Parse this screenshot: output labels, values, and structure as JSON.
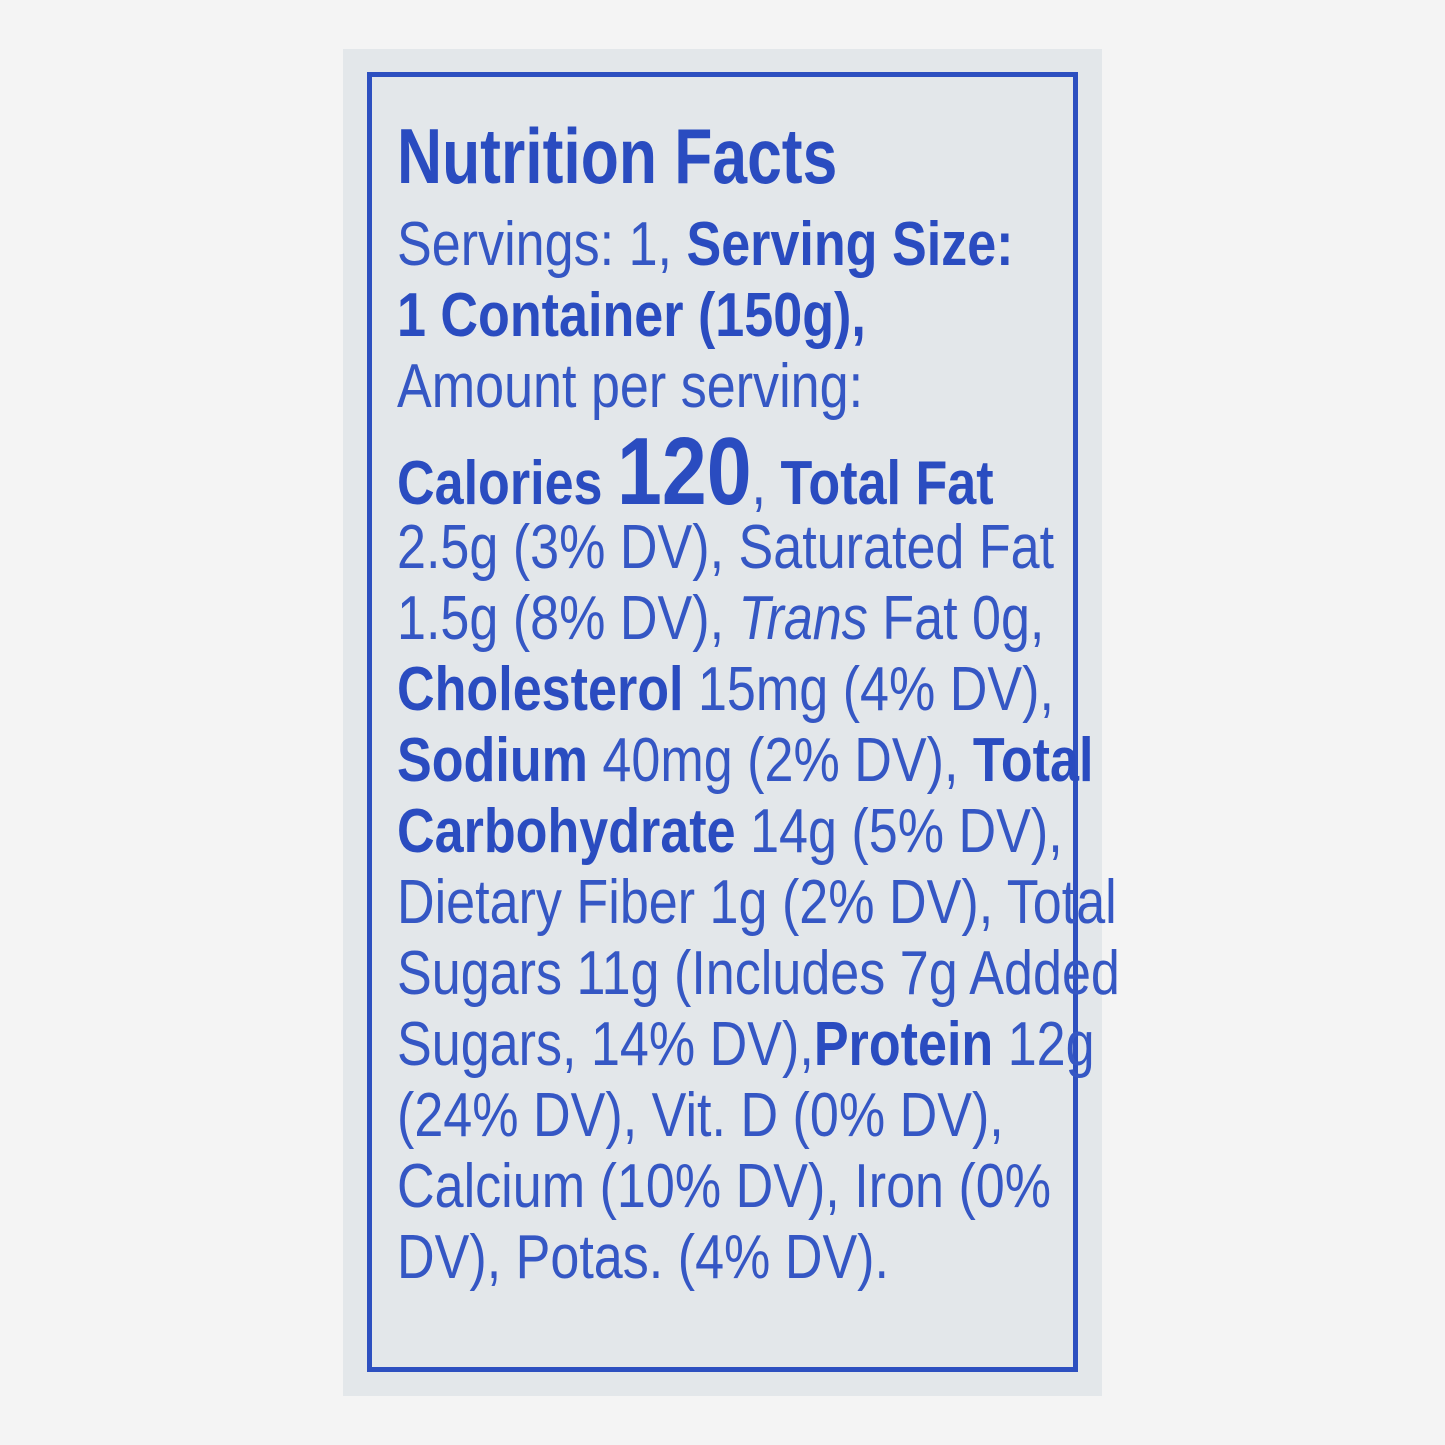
{
  "label": {
    "title": "Nutrition Facts",
    "lines": [
      [
        {
          "t": "Servings: 1, ",
          "b": false
        },
        {
          "t": "Serving Size:",
          "b": true
        }
      ],
      [
        {
          "t": "1 Container (150g),",
          "b": true
        }
      ],
      [
        {
          "t": "Amount per serving:",
          "b": false
        }
      ],
      [
        {
          "t": "2.5g (3% DV), Saturated Fat",
          "b": false
        }
      ],
      [
        {
          "t": "1.5g (8% DV), ",
          "b": false
        },
        {
          "t": "Trans",
          "i": true
        },
        {
          "t": " Fat 0g,",
          "b": false
        }
      ],
      [
        {
          "t": "Cholesterol",
          "b": true
        },
        {
          "t": " 15mg (4% DV),",
          "b": false
        }
      ],
      [
        {
          "t": "Sodium",
          "b": true
        },
        {
          "t": " 40mg (2% DV), ",
          "b": false
        },
        {
          "t": "Total",
          "b": true
        }
      ],
      [
        {
          "t": "Carbohydrate",
          "b": true
        },
        {
          "t": " 14g (5% DV),",
          "b": false
        }
      ],
      [
        {
          "t": "Dietary Fiber 1g (2% DV), Total",
          "b": false
        }
      ],
      [
        {
          "t": "Sugars 11g (Includes 7g Added",
          "b": false
        }
      ],
      [
        {
          "t": "Sugars, 14% DV),",
          "b": false
        },
        {
          "t": "Protein",
          "b": true
        },
        {
          "t": " 12g",
          "b": false
        }
      ],
      [
        {
          "t": "(24% DV), Vit. D (0% DV),",
          "b": false
        }
      ],
      [
        {
          "t": "Calcium (10% DV), Iron (0%",
          "b": false
        }
      ],
      [
        {
          "t": "DV), Potas. (4% DV).",
          "b": false
        }
      ]
    ],
    "calories_label": "Calories",
    "calories_value": "120",
    "calories_after": ", ",
    "total_fat_label": "Total Fat"
  },
  "colors": {
    "ink": "#2d50c0",
    "card": "#e3e7ea",
    "background": "#f4f4f4"
  }
}
